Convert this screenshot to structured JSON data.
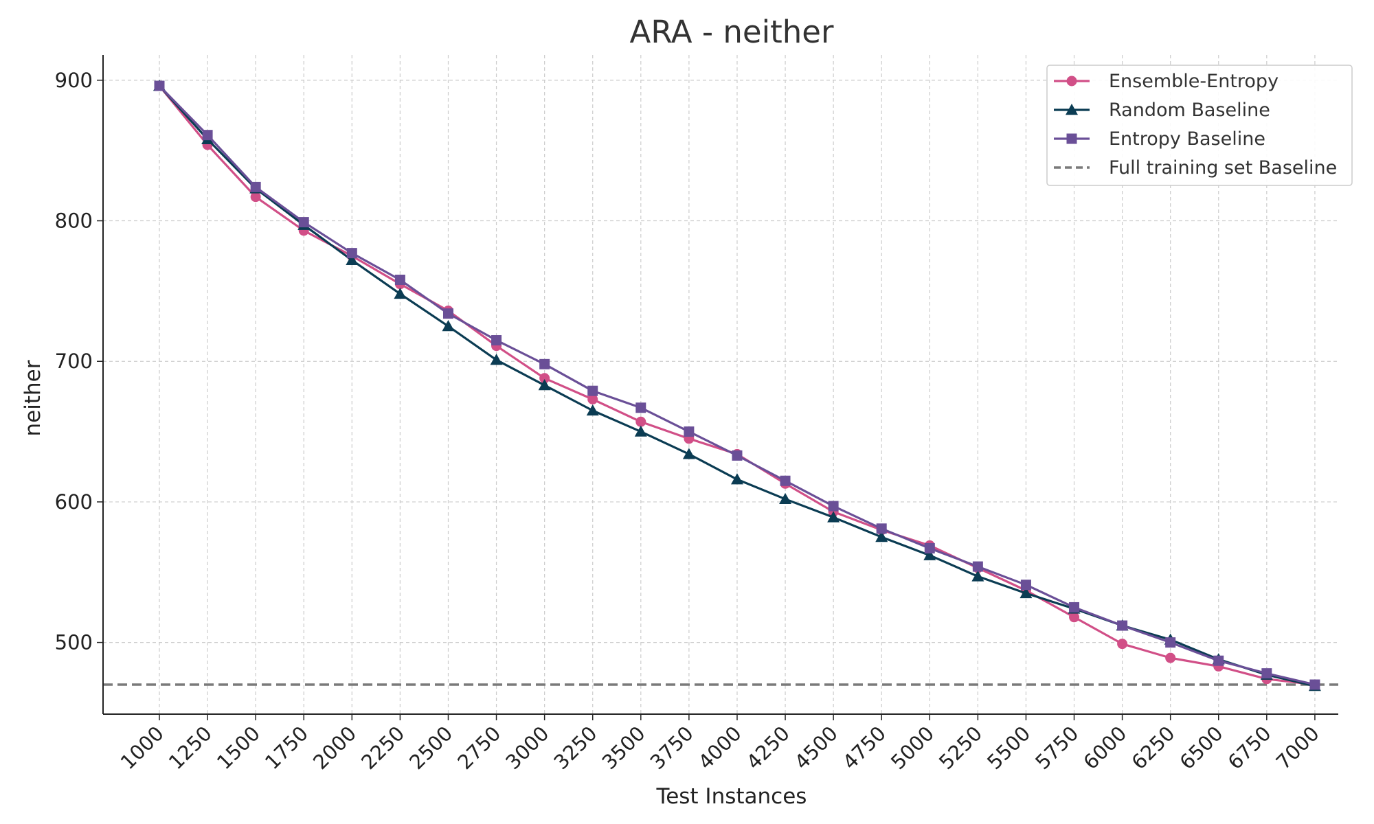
{
  "chart_data": {
    "type": "line",
    "title": "ARA - neither",
    "xlabel": "Test Instances",
    "ylabel": "neither",
    "categories": [
      "1000",
      "1250",
      "1500",
      "1750",
      "2000",
      "2250",
      "2500",
      "2750",
      "3000",
      "3250",
      "3500",
      "3750",
      "4000",
      "4250",
      "4500",
      "4750",
      "5000",
      "5250",
      "5500",
      "5750",
      "6000",
      "6250",
      "6500",
      "6750",
      "7000"
    ],
    "y_ticks": [
      500,
      600,
      700,
      800,
      900
    ],
    "ylim": [
      449,
      918
    ],
    "grid": true,
    "legend_position": "top-right",
    "series": [
      {
        "name": "Ensemble-Entropy",
        "color": "#d14f87",
        "marker": "circle",
        "values": [
          896,
          854,
          817,
          793,
          775,
          755,
          736,
          711,
          688,
          673,
          657,
          645,
          634,
          613,
          593,
          580,
          569,
          553,
          537,
          518,
          499,
          489,
          483,
          474,
          470
        ]
      },
      {
        "name": "Random Baseline",
        "color": "#0b3c53",
        "marker": "triangle",
        "values": [
          896,
          858,
          823,
          797,
          772,
          748,
          725,
          701,
          683,
          665,
          650,
          634,
          616,
          602,
          589,
          575,
          562,
          547,
          535,
          524,
          512,
          502,
          488,
          477,
          469
        ]
      },
      {
        "name": "Entropy Baseline",
        "color": "#6a4f97",
        "marker": "square",
        "values": [
          896,
          861,
          824,
          799,
          777,
          758,
          734,
          715,
          698,
          679,
          667,
          650,
          633,
          615,
          597,
          581,
          567,
          554,
          541,
          525,
          512,
          500,
          487,
          478,
          470
        ]
      }
    ],
    "baseline": {
      "name": "Full training set Baseline",
      "value": 470,
      "color": "#7a7a7a"
    }
  }
}
